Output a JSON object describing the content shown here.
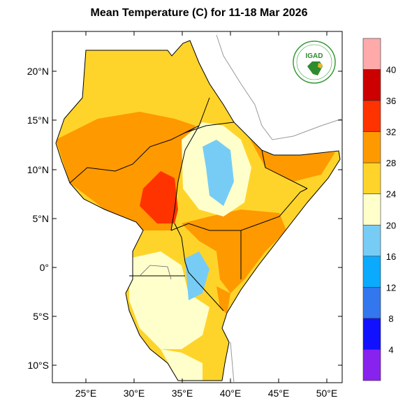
{
  "title": "Mean Temperature (C) for 11-18 Mar 2026",
  "logo": {
    "text": "IGAD"
  },
  "axes": {
    "lat_labels": [
      "20°N",
      "15°N",
      "10°N",
      "5°N",
      "0°",
      "5°S",
      "10°S"
    ],
    "lon_labels": [
      "25°E",
      "30°E",
      "35°E",
      "40°E",
      "45°E",
      "50°E"
    ]
  },
  "colorbar": {
    "labels": [
      "40",
      "36",
      "32",
      "28",
      "24",
      "20",
      "16",
      "12",
      "8",
      "4"
    ],
    "colors": [
      "#ffaaaa",
      "#cc0000",
      "#ff3300",
      "#ff9900",
      "#ffd42a",
      "#ffffcc",
      "#77ccf5",
      "#0aaaff",
      "#3377ee",
      "#1111ff",
      "#8822ee"
    ]
  }
}
